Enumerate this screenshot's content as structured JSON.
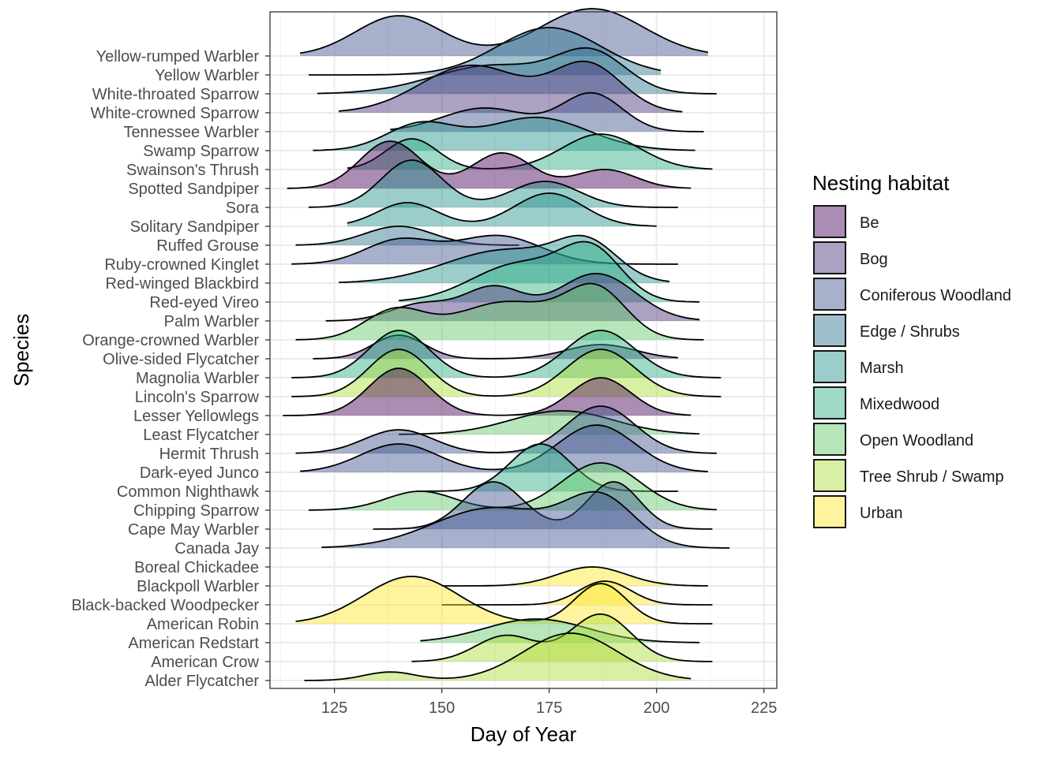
{
  "chart_data": {
    "type": "ridgeline",
    "xlabel": "Day of Year",
    "ylabel": "Species",
    "xlim": [
      110,
      228
    ],
    "x_ticks": [
      125,
      150,
      175,
      200,
      225
    ],
    "grid": true,
    "legend": {
      "title": "Nesting habitat",
      "position": "right"
    },
    "habitats": [
      {
        "name": "Be",
        "color": "#440154"
      },
      {
        "name": "Bog",
        "color": "#472D7B"
      },
      {
        "name": "Coniferous Woodland",
        "color": "#3B528B"
      },
      {
        "name": "Edge / Shrubs",
        "color": "#2C728E"
      },
      {
        "name": "Marsh",
        "color": "#21908C"
      },
      {
        "name": "Mixedwood",
        "color": "#27AD81"
      },
      {
        "name": "Open Woodland",
        "color": "#5DC863"
      },
      {
        "name": "Tree Shrub / Swamp",
        "color": "#AADC32"
      },
      {
        "name": "Urban",
        "color": "#FDE725"
      }
    ],
    "series": [
      {
        "species": "Alder Flycatcher",
        "habitat": "Tree Shrub / Swamp",
        "range": [
          118,
          208
        ],
        "peaks": [
          [
            138,
            6,
            0.18
          ],
          [
            180,
            11,
            1.0
          ]
        ]
      },
      {
        "species": "American Crow",
        "habitat": "Tree Shrub / Swamp",
        "range": [
          143,
          213
        ],
        "peaks": [
          [
            165,
            7,
            0.55
          ],
          [
            187,
            7,
            1.0
          ]
        ]
      },
      {
        "species": "American Redstart",
        "habitat": "Open Woodland",
        "range": [
          145,
          210
        ],
        "peaks": [
          [
            172,
            12,
            0.5
          ]
        ]
      },
      {
        "species": "American Robin",
        "habitat": "Urban",
        "range": [
          116,
          213
        ],
        "peaks": [
          [
            143,
            11,
            1.0
          ],
          [
            187,
            6,
            0.85
          ]
        ]
      },
      {
        "species": "Black-backed Woodpecker",
        "habitat": "Urban",
        "range": [
          150,
          213
        ],
        "peaks": [
          [
            188,
            6,
            0.5
          ]
        ]
      },
      {
        "species": "Blackpoll Warbler",
        "habitat": "Urban",
        "range": [
          150,
          212
        ],
        "peaks": [
          [
            185,
            8,
            0.4
          ]
        ]
      },
      {
        "species": "Boreal Chickadee",
        "habitat": "Coniferous Woodland",
        "range": [
          0,
          0
        ],
        "peaks": []
      },
      {
        "species": "Canada Jay",
        "habitat": "Coniferous Woodland",
        "range": [
          122,
          217
        ],
        "peaks": [
          [
            162,
            14,
            0.85
          ],
          [
            187,
            8,
            1.0
          ]
        ]
      },
      {
        "species": "Cape May Warbler",
        "habitat": "Coniferous Woodland",
        "range": [
          134,
          213
        ],
        "peaks": [
          [
            162,
            7,
            1.0
          ],
          [
            190,
            6,
            1.0
          ]
        ]
      },
      {
        "species": "Chipping Sparrow",
        "habitat": "Open Woodland",
        "range": [
          119,
          214
        ],
        "peaks": [
          [
            145,
            8,
            0.4
          ],
          [
            187,
            9,
            1.0
          ]
        ]
      },
      {
        "species": "Common Nighthawk",
        "habitat": "Mixedwood",
        "range": [
          144,
          205
        ],
        "peaks": [
          [
            173,
            7,
            1.0
          ]
        ]
      },
      {
        "species": "Dark-eyed Junco",
        "habitat": "Coniferous Woodland",
        "range": [
          117,
          212
        ],
        "peaks": [
          [
            140,
            9,
            0.6
          ],
          [
            186,
            9,
            1.0
          ]
        ]
      },
      {
        "species": "Hermit Thrush",
        "habitat": "Coniferous Woodland",
        "range": [
          116,
          214
        ],
        "peaks": [
          [
            140,
            8,
            0.5
          ],
          [
            187,
            8,
            1.0
          ]
        ]
      },
      {
        "species": "Least Flycatcher",
        "habitat": "Open Woodland",
        "range": [
          140,
          210
        ],
        "peaks": [
          [
            178,
            12,
            0.5
          ]
        ]
      },
      {
        "species": "Lesser Yellowlegs",
        "habitat": "Be",
        "range": [
          113,
          208
        ],
        "peaks": [
          [
            140,
            7,
            1.0
          ],
          [
            187,
            7,
            0.8
          ]
        ]
      },
      {
        "species": "Lincoln's Sparrow",
        "habitat": "Tree Shrub / Swamp",
        "range": [
          115,
          215
        ],
        "peaks": [
          [
            140,
            7,
            1.0
          ],
          [
            187,
            8,
            1.0
          ]
        ]
      },
      {
        "species": "Magnolia Warbler",
        "habitat": "Mixedwood",
        "range": [
          115,
          215
        ],
        "peaks": [
          [
            140,
            7,
            1.0
          ],
          [
            187,
            8,
            1.0
          ]
        ]
      },
      {
        "species": "Olive-sided Flycatcher",
        "habitat": "Bog",
        "range": [
          120,
          205
        ],
        "peaks": [
          [
            140,
            6,
            0.5
          ],
          [
            187,
            8,
            0.3
          ]
        ]
      },
      {
        "species": "Orange-crowned Warbler",
        "habitat": "Open Woodland",
        "range": [
          116,
          211
        ],
        "peaks": [
          [
            139,
            7,
            0.6
          ],
          [
            165,
            12,
            0.8
          ],
          [
            186,
            7,
            1.0
          ]
        ]
      },
      {
        "species": "Palm Warbler",
        "habitat": "Bog",
        "range": [
          123,
          210
        ],
        "peaks": [
          [
            145,
            7,
            0.35
          ],
          [
            162,
            7,
            0.7
          ],
          [
            186,
            9,
            1.0
          ]
        ]
      },
      {
        "species": "Red-eyed Vireo",
        "habitat": "Mixedwood",
        "range": [
          140,
          210
        ],
        "peaks": [
          [
            168,
            11,
            0.8
          ],
          [
            185,
            7,
            1.0
          ]
        ]
      },
      {
        "species": "Red-winged Blackbird",
        "habitat": "Marsh",
        "range": [
          126,
          203
        ],
        "peaks": [
          [
            165,
            14,
            0.7
          ],
          [
            184,
            7,
            0.7
          ]
        ]
      },
      {
        "species": "Ruby-crowned Kinglet",
        "habitat": "Coniferous Woodland",
        "range": [
          115,
          205
        ],
        "peaks": [
          [
            140,
            8,
            0.5
          ],
          [
            163,
            10,
            0.6
          ]
        ]
      },
      {
        "species": "Ruffed Grouse",
        "habitat": "Edge / Shrubs",
        "range": [
          116,
          168
        ],
        "peaks": [
          [
            140,
            8,
            0.4
          ]
        ]
      },
      {
        "species": "Solitary Sandpiper",
        "habitat": "Marsh",
        "range": [
          128,
          200
        ],
        "peaks": [
          [
            142,
            7,
            0.5
          ],
          [
            175,
            8,
            0.7
          ]
        ]
      },
      {
        "species": "Sora",
        "habitat": "Marsh",
        "range": [
          119,
          205
        ],
        "peaks": [
          [
            143,
            7,
            1.0
          ],
          [
            174,
            8,
            0.55
          ]
        ]
      },
      {
        "species": "Spotted Sandpiper",
        "habitat": "Be",
        "range": [
          114,
          208
        ],
        "peaks": [
          [
            138,
            7,
            1.0
          ],
          [
            164,
            7,
            0.75
          ],
          [
            188,
            7,
            0.4
          ]
        ]
      },
      {
        "species": "Swainson's Thrush",
        "habitat": "Mixedwood",
        "range": [
          128,
          213
        ],
        "peaks": [
          [
            143,
            6,
            0.65
          ],
          [
            187,
            9,
            0.75
          ]
        ]
      },
      {
        "species": "Swamp Sparrow",
        "habitat": "Marsh",
        "range": [
          120,
          209
        ],
        "peaks": [
          [
            145,
            8,
            0.55
          ],
          [
            172,
            12,
            0.7
          ]
        ]
      },
      {
        "species": "Tennessee Warbler",
        "habitat": "Coniferous Woodland",
        "range": [
          138,
          211
        ],
        "peaks": [
          [
            160,
            10,
            0.5
          ],
          [
            185,
            7,
            0.8
          ]
        ]
      },
      {
        "species": "White-crowned Sparrow",
        "habitat": "Bog",
        "range": [
          126,
          206
        ],
        "peaks": [
          [
            157,
            12,
            1.0
          ],
          [
            184,
            8,
            1.0
          ]
        ]
      },
      {
        "species": "White-throated Sparrow",
        "habitat": "Edge / Shrubs",
        "range": [
          121,
          214
        ],
        "peaks": [
          [
            162,
            14,
            0.6
          ],
          [
            185,
            8,
            0.8
          ]
        ]
      },
      {
        "species": "Yellow Warbler",
        "habitat": "Edge / Shrubs",
        "range": [
          119,
          201
        ],
        "peaks": [
          [
            175,
            12,
            1.0
          ]
        ]
      },
      {
        "species": "Yellow-rumped Warbler",
        "habitat": "Coniferous Woodland",
        "range": [
          117,
          212
        ],
        "peaks": [
          [
            140,
            10,
            0.85
          ],
          [
            185,
            12,
            1.0
          ]
        ]
      }
    ]
  }
}
